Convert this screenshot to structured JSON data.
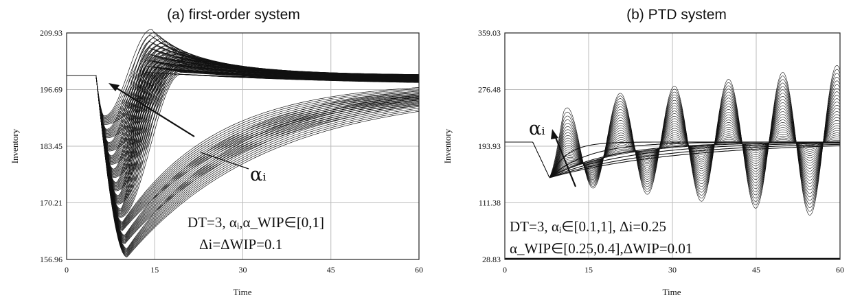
{
  "chart_data": [
    {
      "type": "line",
      "title": "(a) first-order system",
      "xlabel": "Time",
      "ylabel": "Inventory",
      "xlim": [
        0,
        60
      ],
      "ylim": [
        156.96,
        209.93
      ],
      "xticks": [
        "0",
        "15",
        "30",
        "45",
        "60"
      ],
      "yticks": [
        "156.96",
        "170.21",
        "183.45",
        "196.69",
        "209.93"
      ],
      "grid": true,
      "alpha_label": "αᵢ",
      "annotation_lines": [
        "DT=3, αᵢ,α_WIP∈[0,1]",
        "Δi=ΔWIP=0.1"
      ],
      "initial_level": 200,
      "step_time": 5,
      "series_summary": {
        "count": 121,
        "min_trough": 157.5,
        "max_peak": 209.5,
        "final_range": [
          196.5,
          200
        ]
      }
    },
    {
      "type": "line",
      "title": "(b) PTD system",
      "xlabel": "Time",
      "ylabel": "Inventory",
      "xlim": [
        0,
        60
      ],
      "ylim": [
        28.83,
        359.03
      ],
      "xticks": [
        "0",
        "15",
        "30",
        "45",
        "60"
      ],
      "yticks": [
        "28.83",
        "111.38",
        "193.93",
        "276.48",
        "359.03"
      ],
      "grid": true,
      "alpha_label": "αᵢ",
      "annotation_lines": [
        "DT=3, αᵢ∈[0.1,1], Δi=0.25",
        "α_WIP∈[0.25,0.4],ΔWIP=0.01"
      ],
      "initial_level": 200,
      "step_time": 5,
      "oscillation_peaks": [
        {
          "t": 12.8,
          "value": 258
        },
        {
          "t": 22.5,
          "value": 278
        },
        {
          "t": 32.2,
          "value": 293
        },
        {
          "t": 41.8,
          "value": 316
        },
        {
          "t": 51.5,
          "value": 345
        }
      ],
      "oscillation_troughs": [
        {
          "t": 17.5,
          "value": 140
        },
        {
          "t": 27.2,
          "value": 128
        },
        {
          "t": 36.9,
          "value": 108
        },
        {
          "t": 46.6,
          "value": 90
        },
        {
          "t": 56.3,
          "value": 68
        }
      ]
    }
  ]
}
